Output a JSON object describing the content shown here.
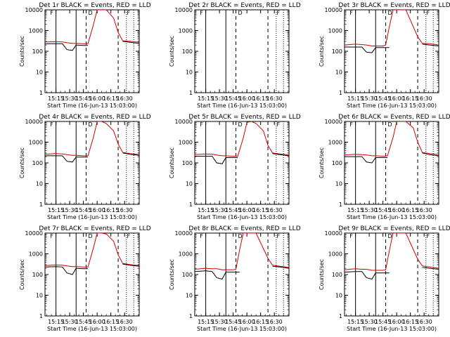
{
  "figure": {
    "panel_titles": [
      "Det 1r BLACK = Events, RED = LLD",
      "Det 2r BLACK = Events, RED = LLD",
      "Det 3r BLACK = Events, RED = LLD",
      "Det 4r BLACK = Events, RED = LLD",
      "Det 5r BLACK = Events, RED = LLD",
      "Det 6r BLACK = Events, RED = LLD",
      "Det 7r BLACK = Events, RED = LLD",
      "Det 8r BLACK = Events, RED = LLD",
      "Det 9r BLACK = Events, RED = LLD"
    ],
    "ylabel": "Counts/sec",
    "xlabel": "Start Time (16-Jun-13 15:03:00)",
    "series_colors": {
      "events": "#000000",
      "lld": "#d40000"
    },
    "marker_labels": [
      "F",
      "D",
      "F"
    ]
  },
  "chart_data": {
    "type": "line",
    "x_unit": "time (HH:MM)",
    "y_scale": "log",
    "ylim": [
      1,
      10000
    ],
    "y_ticks": [
      1,
      10,
      100,
      1000,
      10000
    ],
    "y_tick_labels": [
      "1",
      "10",
      "100",
      "1000",
      "10000"
    ],
    "x_tick_labels": [
      "15:15",
      "15:30",
      "15:45",
      "16:00",
      "16:15",
      "16:30"
    ],
    "vertical_markers": {
      "solid_times": [
        "15:15",
        "15:37"
      ],
      "dashed_times": [
        "15:48",
        "16:23"
      ],
      "dotted_times": [
        "16:32",
        "16:40"
      ]
    },
    "panels": [
      {
        "det": "1r",
        "x": [
          "15:03",
          "15:15",
          "15:22",
          "15:27",
          "15:33",
          "15:37",
          "15:45",
          "15:48",
          "15:50",
          "15:56",
          "16:00",
          "16:05",
          "16:10",
          "16:18",
          "16:23",
          "16:28",
          "16:36",
          "16:46"
        ],
        "events": [
          230,
          230,
          230,
          120,
          110,
          200,
          190,
          190,
          190,
          null,
          null,
          null,
          null,
          null,
          null,
          300,
          270,
          240
        ],
        "lld": [
          280,
          290,
          280,
          260,
          240,
          240,
          230,
          230,
          230,
          2000,
          10000,
          10000,
          10000,
          4000,
          800,
          320,
          300,
          270
        ]
      },
      {
        "det": "2r",
        "x": [
          "15:03",
          "15:46"
        ],
        "events": [
          null,
          null
        ],
        "lld": [
          null,
          null
        ]
      },
      {
        "det": "3r",
        "x": [
          "15:03",
          "15:15",
          "15:22",
          "15:27",
          "15:33",
          "15:37",
          "15:45",
          "15:48",
          "15:52",
          "15:56",
          "16:00",
          "16:10",
          "16:23",
          "16:28",
          "16:36",
          "16:46"
        ],
        "events": [
          160,
          160,
          160,
          90,
          85,
          150,
          150,
          150,
          150,
          null,
          null,
          null,
          null,
          220,
          200,
          180
        ],
        "lld": [
          200,
          220,
          210,
          200,
          180,
          180,
          180,
          200,
          1500,
          10000,
          10000,
          10000,
          500,
          240,
          230,
          200
        ]
      },
      {
        "det": "4r",
        "x": [
          "15:03",
          "15:15",
          "15:22",
          "15:27",
          "15:33",
          "15:37",
          "15:45",
          "15:48",
          "15:50",
          "15:56",
          "16:00",
          "16:05",
          "16:10",
          "16:18",
          "16:23",
          "16:28",
          "16:36",
          "16:46"
        ],
        "events": [
          220,
          220,
          220,
          120,
          110,
          190,
          190,
          190,
          190,
          null,
          null,
          null,
          null,
          null,
          null,
          300,
          260,
          230
        ],
        "lld": [
          260,
          280,
          270,
          250,
          230,
          230,
          220,
          220,
          220,
          1800,
          10000,
          10000,
          8000,
          3500,
          800,
          320,
          280,
          250
        ]
      },
      {
        "det": "5r",
        "x": [
          "15:03",
          "15:15",
          "15:22",
          "15:27",
          "15:33",
          "15:37",
          "15:45",
          "15:48",
          "15:50",
          "15:56",
          "16:00",
          "16:05",
          "16:10",
          "16:18",
          "16:23",
          "16:28",
          "16:36",
          "16:46"
        ],
        "events": [
          210,
          210,
          210,
          100,
          90,
          180,
          180,
          180,
          180,
          null,
          null,
          null,
          null,
          null,
          null,
          280,
          250,
          220
        ],
        "lld": [
          250,
          270,
          260,
          240,
          220,
          220,
          210,
          210,
          210,
          1600,
          9000,
          10000,
          8000,
          3500,
          700,
          300,
          270,
          240
        ]
      },
      {
        "det": "6r",
        "x": [
          "15:03",
          "15:15",
          "15:22",
          "15:27",
          "15:33",
          "15:37",
          "15:45",
          "15:48",
          "15:50",
          "15:56",
          "16:00",
          "16:05",
          "16:10",
          "16:18",
          "16:23",
          "16:28",
          "16:36",
          "16:46"
        ],
        "events": [
          200,
          200,
          200,
          110,
          100,
          180,
          180,
          180,
          180,
          null,
          null,
          null,
          null,
          null,
          null,
          300,
          250,
          220
        ],
        "lld": [
          240,
          260,
          250,
          240,
          220,
          220,
          210,
          210,
          220,
          1700,
          10000,
          10000,
          10000,
          5000,
          1000,
          320,
          280,
          250
        ]
      },
      {
        "det": "7r",
        "x": [
          "15:03",
          "15:15",
          "15:22",
          "15:27",
          "15:33",
          "15:37",
          "15:45",
          "15:48",
          "15:50",
          "15:56",
          "16:00",
          "16:05",
          "16:10",
          "16:18",
          "16:23",
          "16:28",
          "16:36",
          "16:46"
        ],
        "events": [
          230,
          240,
          230,
          120,
          100,
          200,
          190,
          190,
          190,
          null,
          null,
          null,
          null,
          null,
          null,
          320,
          280,
          250
        ],
        "lld": [
          270,
          290,
          280,
          260,
          240,
          240,
          230,
          230,
          230,
          2000,
          10000,
          10000,
          9000,
          4000,
          900,
          340,
          300,
          270
        ]
      },
      {
        "det": "8r",
        "x": [
          "15:03",
          "15:15",
          "15:22",
          "15:27",
          "15:33",
          "15:37",
          "15:45",
          "15:48",
          "15:52",
          "15:56",
          "16:00",
          "16:10",
          "16:23",
          "16:28",
          "16:36",
          "16:46"
        ],
        "events": [
          140,
          150,
          140,
          70,
          60,
          130,
          130,
          130,
          130,
          null,
          null,
          null,
          null,
          250,
          230,
          200
        ],
        "lld": [
          180,
          200,
          190,
          190,
          170,
          170,
          170,
          180,
          1500,
          10000,
          10000,
          10000,
          600,
          280,
          250,
          220
        ]
      },
      {
        "det": "9r",
        "x": [
          "15:03",
          "15:15",
          "15:22",
          "15:27",
          "15:33",
          "15:37",
          "15:45",
          "15:48",
          "15:52",
          "15:56",
          "16:00",
          "16:10",
          "16:23",
          "16:28",
          "16:36",
          "16:46"
        ],
        "events": [
          130,
          140,
          140,
          70,
          60,
          120,
          120,
          120,
          120,
          null,
          null,
          null,
          null,
          220,
          200,
          180
        ],
        "lld": [
          170,
          190,
          180,
          180,
          160,
          160,
          160,
          170,
          1400,
          10000,
          10000,
          10000,
          550,
          260,
          230,
          200
        ]
      }
    ]
  }
}
